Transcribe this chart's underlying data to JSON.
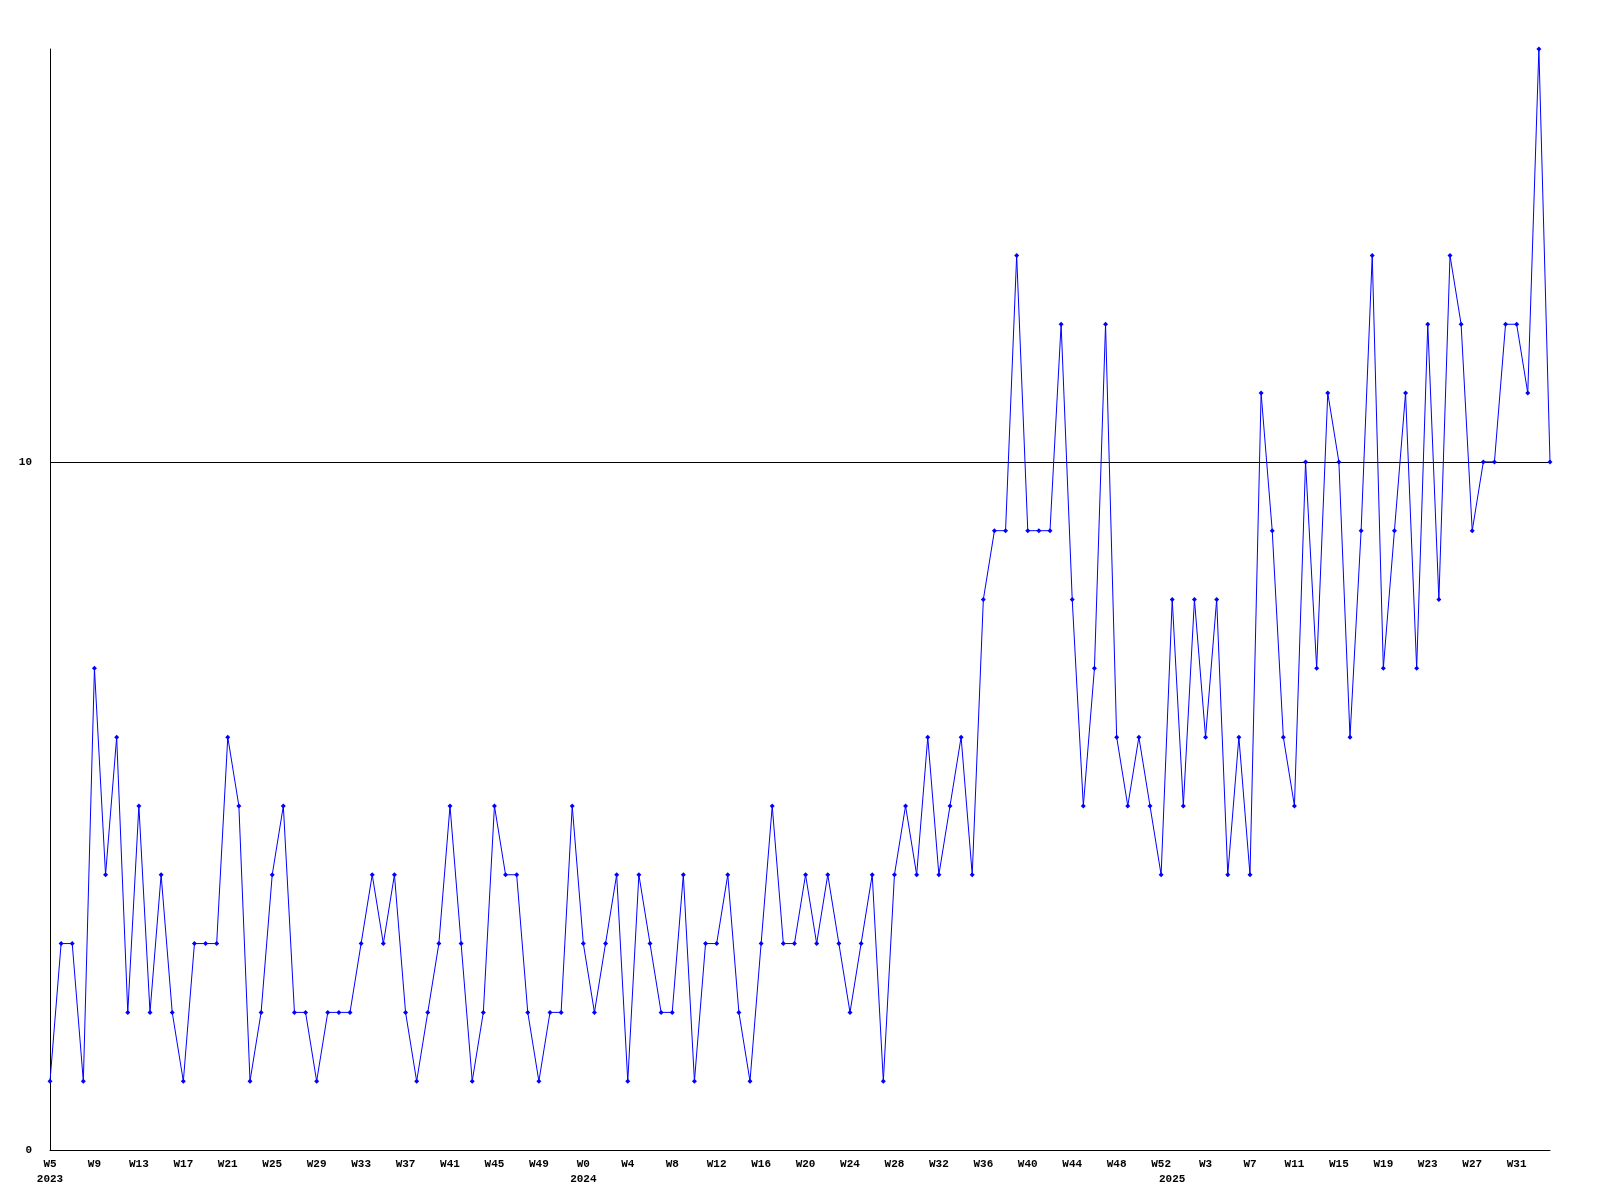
{
  "chart_data": {
    "type": "line",
    "categories": [
      "W5\n2023",
      null,
      null,
      null,
      "W9",
      null,
      null,
      null,
      "W13",
      null,
      null,
      null,
      "W17",
      null,
      null,
      null,
      "W21",
      null,
      null,
      null,
      "W25",
      null,
      null,
      null,
      "W29",
      null,
      null,
      null,
      "W33",
      null,
      null,
      null,
      "W37",
      null,
      null,
      null,
      "W41",
      null,
      null,
      null,
      "W45",
      null,
      null,
      null,
      "W49",
      null,
      null,
      null,
      "W0\n2024",
      null,
      null,
      null,
      "W4",
      null,
      null,
      null,
      "W8",
      null,
      null,
      null,
      "W12",
      null,
      null,
      null,
      "W16",
      null,
      null,
      null,
      "W20",
      null,
      null,
      null,
      "W24",
      null,
      null,
      null,
      "W28",
      null,
      null,
      null,
      "W32",
      null,
      null,
      null,
      "W36",
      null,
      null,
      null,
      "W40",
      null,
      null,
      null,
      "W44",
      null,
      null,
      null,
      "W48",
      null,
      null,
      null,
      "W52",
      "\n2025",
      null,
      null,
      "W3",
      null,
      null,
      null,
      "W7",
      null,
      null,
      null,
      "W11",
      null,
      null,
      null,
      "W15",
      null,
      null,
      null,
      "W19",
      null,
      null,
      null,
      "W23",
      null,
      null,
      null,
      "W27",
      null,
      null,
      null,
      "W31",
      null,
      null,
      null
    ],
    "values": [
      1,
      3,
      3,
      1,
      7,
      4,
      6,
      2,
      5,
      2,
      4,
      2,
      1,
      3,
      3,
      3,
      6,
      5,
      1,
      2,
      4,
      5,
      2,
      2,
      1,
      2,
      2,
      2,
      3,
      4,
      3,
      4,
      2,
      1,
      2,
      3,
      5,
      3,
      1,
      2,
      5,
      4,
      4,
      2,
      1,
      2,
      2,
      5,
      3,
      2,
      3,
      4,
      1,
      4,
      3,
      2,
      2,
      4,
      1,
      3,
      3,
      4,
      2,
      1,
      3,
      5,
      3,
      3,
      4,
      3,
      4,
      3,
      2,
      3,
      4,
      1,
      4,
      5,
      4,
      6,
      4,
      5,
      6,
      4,
      8,
      9,
      9,
      13,
      9,
      9,
      9,
      12,
      8,
      5,
      7,
      12,
      6,
      5,
      6,
      5,
      4,
      8,
      5,
      8,
      6,
      8,
      4,
      6,
      4,
      11,
      9,
      6,
      5,
      10,
      7,
      11,
      10,
      6,
      9,
      13,
      7,
      9,
      11,
      7,
      12,
      8,
      13,
      12,
      9,
      10,
      10,
      12,
      12,
      11,
      16,
      10
    ],
    "color": "#0000ff",
    "ylim": [
      0,
      16
    ],
    "yticks": [
      0,
      10
    ],
    "grid": "y",
    "marker": "diamond"
  }
}
